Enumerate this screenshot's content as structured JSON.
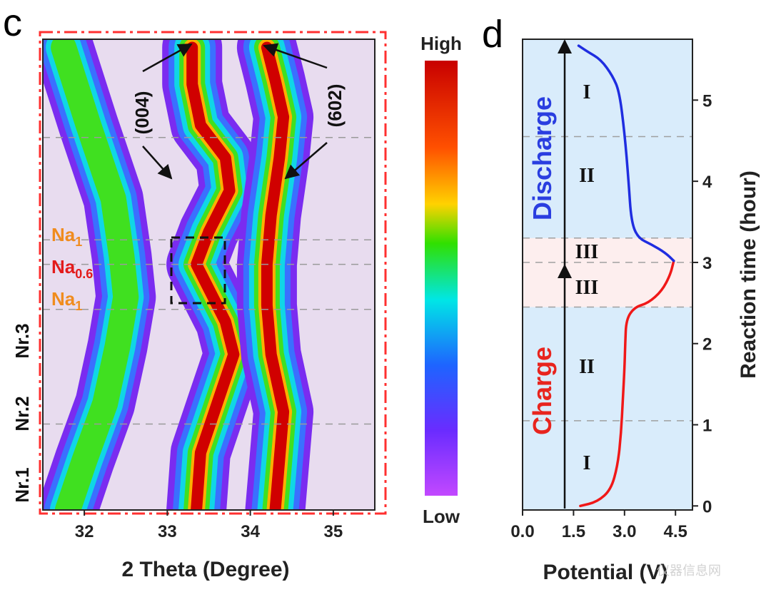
{
  "chart_data": [
    {
      "type": "heatmap",
      "panel_label": "c",
      "xlabel": "2 Theta (Degree)",
      "xlim": [
        31.5,
        35.5
      ],
      "x_ticks": [
        "32",
        "33",
        "34",
        "35"
      ],
      "ylim": [
        0,
        5.75
      ],
      "peak_annotations": [
        "(004)",
        "(602)"
      ],
      "phase_labels": [
        {
          "text": "Na",
          "sub": "1",
          "color": "#f08c1e"
        },
        {
          "text": "Na",
          "sub": "0.6",
          "color": "#e31b1b"
        },
        {
          "text": "Na",
          "sub": "1",
          "color": "#f08c1e"
        }
      ],
      "region_labels": [
        "Nr.3",
        "Nr.2",
        "Nr.1"
      ],
      "colorbar": {
        "high": "High",
        "low": "Low"
      },
      "ridges": [
        {
          "name": "left",
          "points": [
            [
              31.8,
              0.0
            ],
            [
              32.0,
              0.6
            ],
            [
              32.25,
              1.3
            ],
            [
              32.4,
              2.0
            ],
            [
              32.5,
              2.6
            ],
            [
              32.45,
              3.1
            ],
            [
              32.35,
              3.8
            ],
            [
              32.05,
              4.7
            ],
            [
              31.75,
              5.65
            ]
          ]
        },
        {
          "name": "004",
          "points": [
            [
              33.35,
              0.0
            ],
            [
              33.4,
              0.7
            ],
            [
              33.6,
              1.3
            ],
            [
              33.8,
              1.9
            ],
            [
              33.7,
              2.3
            ],
            [
              33.5,
              2.7
            ],
            [
              33.35,
              3.0
            ],
            [
              33.5,
              3.4
            ],
            [
              33.75,
              3.9
            ],
            [
              33.7,
              4.3
            ],
            [
              33.4,
              4.7
            ],
            [
              33.3,
              5.2
            ],
            [
              33.3,
              5.65
            ]
          ]
        },
        {
          "name": "602",
          "points": [
            [
              34.3,
              0.0
            ],
            [
              34.35,
              0.6
            ],
            [
              34.4,
              1.2
            ],
            [
              34.25,
              1.9
            ],
            [
              34.2,
              2.5
            ],
            [
              34.2,
              3.0
            ],
            [
              34.25,
              3.6
            ],
            [
              34.35,
              4.3
            ],
            [
              34.4,
              4.8
            ],
            [
              34.3,
              5.25
            ],
            [
              34.2,
              5.65
            ]
          ]
        }
      ]
    },
    {
      "type": "line",
      "panel_label": "d",
      "xlabel": "Potential (V)",
      "ylabel": "Reaction time (hour)",
      "xlim": [
        0,
        5
      ],
      "ylim": [
        -0.05,
        5.75
      ],
      "x_ticks": [
        "0.0",
        "1.5",
        "3.0",
        "4.5"
      ],
      "y_ticks": [
        "0",
        "1",
        "2",
        "3",
        "4",
        "5"
      ],
      "phase_text": {
        "charge": "Charge",
        "discharge": "Discharge"
      },
      "stage_labels": [
        "I",
        "II",
        "III",
        "III",
        "II",
        "I"
      ],
      "series": [
        {
          "name": "Charge",
          "color": "#f01818",
          "points": [
            [
              1.7,
              0.0
            ],
            [
              2.2,
              0.05
            ],
            [
              2.6,
              0.2
            ],
            [
              2.8,
              0.5
            ],
            [
              2.9,
              0.9
            ],
            [
              2.95,
              1.3
            ],
            [
              3.0,
              1.7
            ],
            [
              3.02,
              2.0
            ],
            [
              3.05,
              2.3
            ],
            [
              3.3,
              2.45
            ],
            [
              3.7,
              2.5
            ],
            [
              4.1,
              2.65
            ],
            [
              4.35,
              2.85
            ],
            [
              4.45,
              3.02
            ]
          ]
        },
        {
          "name": "Discharge",
          "color": "#1f2de0",
          "points": [
            [
              4.45,
              3.02
            ],
            [
              4.2,
              3.12
            ],
            [
              3.8,
              3.22
            ],
            [
              3.4,
              3.3
            ],
            [
              3.2,
              3.5
            ],
            [
              3.12,
              4.0
            ],
            [
              3.0,
              4.6
            ],
            [
              2.85,
              5.1
            ],
            [
              2.65,
              5.3
            ],
            [
              2.3,
              5.5
            ],
            [
              1.9,
              5.6
            ],
            [
              1.65,
              5.67
            ]
          ]
        }
      ],
      "dashed_times": [
        1.05,
        2.45,
        3.0,
        3.3,
        4.55
      ],
      "stage3_band": [
        2.45,
        3.3
      ]
    }
  ],
  "watermark": "仪器信息网"
}
